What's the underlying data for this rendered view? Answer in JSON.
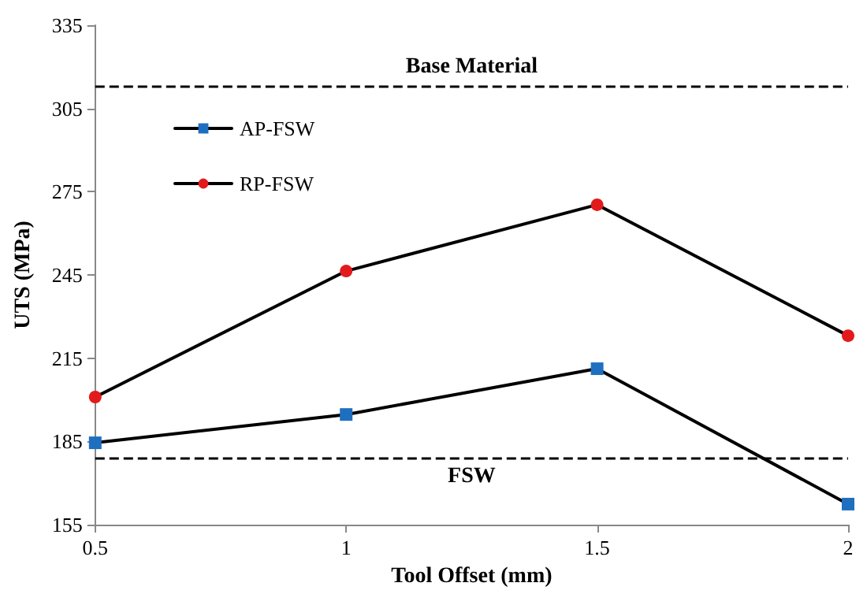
{
  "chart_data": {
    "type": "line",
    "xlabel": "Tool Offset (mm)",
    "ylabel": "UTS (MPa)",
    "x": [
      0.5,
      1,
      1.5,
      2
    ],
    "series": [
      {
        "name": "AP-FSW",
        "color": "#1f6fc0",
        "marker": "square",
        "values": [
          184.5,
          194.7,
          211.2,
          162.4
        ]
      },
      {
        "name": "RP-FSW",
        "color": "#e31a1c",
        "marker": "circle",
        "values": [
          201,
          246.4,
          270.3,
          223.1
        ]
      }
    ],
    "xlim": [
      0.5,
      2
    ],
    "xticks": [
      0.5,
      1,
      1.5,
      2
    ],
    "ylim": [
      155,
      335
    ],
    "yticks": [
      155,
      185,
      215,
      245,
      275,
      305,
      335
    ],
    "ref_lines": [
      {
        "axis": "y",
        "value": 313,
        "label": "Base Material",
        "color": "#000000",
        "line_style": "dashed"
      },
      {
        "axis": "y",
        "value": 179,
        "label": "FSW",
        "color": "#000000",
        "line_style": "dashed"
      }
    ],
    "grid": false,
    "legend": "top left",
    "line_style": "solid"
  }
}
